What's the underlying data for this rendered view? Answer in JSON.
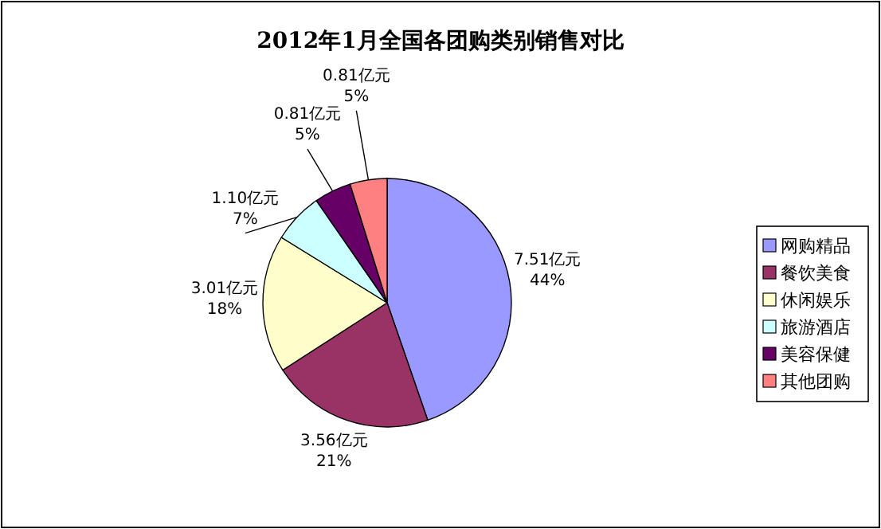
{
  "chart_data": {
    "type": "pie",
    "title": "2012年1月全国各团购类别销售对比",
    "categories": [
      "网购精品",
      "餐饮美食",
      "休闲娱乐",
      "旅游酒店",
      "美容保健",
      "其他团购"
    ],
    "values": [
      7.51,
      3.56,
      3.01,
      1.1,
      0.81,
      0.81
    ],
    "colors": [
      "#9999ff",
      "#993366",
      "#ffffcc",
      "#ccffff",
      "#660066",
      "#ff8080"
    ],
    "value_labels": [
      "7.51亿元\n44%",
      "3.56亿元\n21%",
      "3.01亿元\n18%",
      "1.10亿元\n7%",
      "0.81亿元\n5%",
      "0.81亿元\n5%"
    ],
    "legend": "right"
  }
}
